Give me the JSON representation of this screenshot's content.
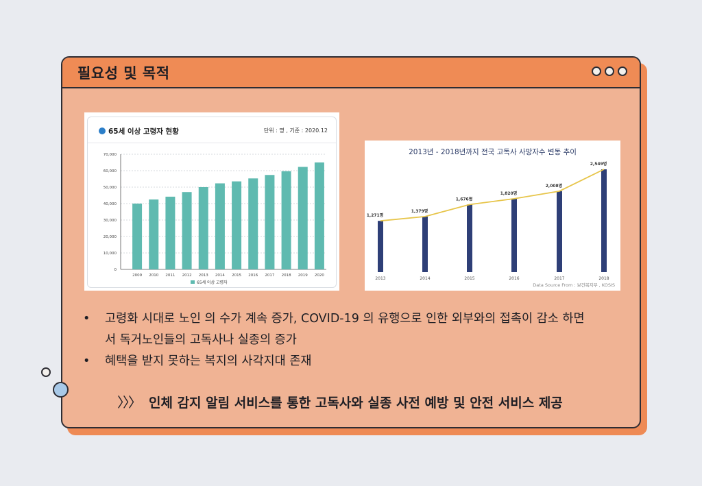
{
  "header": {
    "title": "필요성 및 목적"
  },
  "left_panel": {
    "title": "65세 이상 고령자 현황",
    "unit": "단위 : 명 , 기준 : 2020.12"
  },
  "right_panel": {
    "title": "2013년 - 2018년까지 전국 고독사 사망자수 변동 추이",
    "source": "Data Source From : 보건복지부 , KOSIS"
  },
  "bullets": {
    "item1_line1": "고령화 시대로  노인 의 수가 계속 증가,  COVID-19 의 유행으로 인한 외부와의 접촉이 감소 하면",
    "item1_line2": "서 독거노인들의 고독사나 실종의 증가",
    "item2": "혜택을 받지 못하는 복지의 사각지대 존재",
    "marker": "•"
  },
  "conclusion": {
    "chevrons": "〉〉〉",
    "text": "인체 감지 알림 서비스를 통한 고독사와 실종 사전 예방 및 안전 서비스 제공"
  },
  "colors": {
    "card_bg": "#f0b394",
    "header_bg": "#ef8b55",
    "bar_teal": "#5fbab0",
    "bar_navy": "#2e3f77",
    "line_yellow": "#e7c54a"
  },
  "chart_data": [
    {
      "type": "bar",
      "title": "65세 이상 고령자 현황",
      "categories": [
        "2009",
        "2010",
        "2011",
        "2012",
        "2013",
        "2014",
        "2015",
        "2016",
        "2017",
        "2018",
        "2019",
        "2020"
      ],
      "series": [
        {
          "name": "65세 이상 고령자",
          "values": [
            40000,
            42500,
            44200,
            47000,
            50000,
            52300,
            53500,
            55300,
            57400,
            59700,
            62300,
            65000
          ]
        }
      ],
      "ylim": [
        0,
        70000
      ],
      "yticks": [
        0,
        10000,
        20000,
        30000,
        40000,
        50000,
        60000,
        70000
      ],
      "ytick_labels": [
        "0",
        "10,000",
        "20,000",
        "30,000",
        "40,000",
        "50,000",
        "60,000",
        "70,000"
      ],
      "grid": true,
      "legend": "bottom"
    },
    {
      "type": "bar",
      "title": "2013년 - 2018년까지 전국 고독사 사망자수 변동 추이",
      "categories": [
        "2013",
        "2014",
        "2015",
        "2016",
        "2017",
        "2018"
      ],
      "series": [
        {
          "values": [
            1271,
            1379,
            1676,
            1820,
            2008,
            2549
          ]
        }
      ],
      "data_labels": [
        "1,271명",
        "1,379명",
        "1,676명",
        "1,820명",
        "2,008명",
        "2,549명"
      ],
      "overlay_line": true,
      "grid": false
    }
  ]
}
